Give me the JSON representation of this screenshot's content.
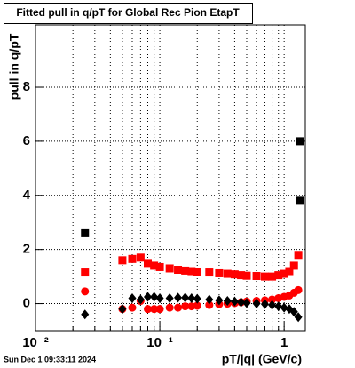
{
  "chart_data": {
    "type": "scatter",
    "title": "Fitted pull in q/pT for Global Rec Pion EtapT",
    "y_label": "pull in q/pT",
    "x_label": "pT/|q| (GeV/c)",
    "footer": "Sun Dec  1 09:33:11 2024",
    "xscale": "log",
    "grid": true,
    "xlim": [
      0.01,
      1.48
    ],
    "ylim": [
      -1,
      10.3
    ],
    "xticks": [
      {
        "value": 0.01,
        "label": "10⁻²"
      },
      {
        "value": 0.1,
        "label": "10⁻¹"
      },
      1
    ],
    "xminorticks": [
      0.02,
      0.03,
      0.04,
      0.05,
      0.06,
      0.07,
      0.08,
      0.09,
      0.2,
      0.3,
      0.4,
      0.5,
      0.6,
      0.7,
      0.8,
      0.9
    ],
    "yticks": [
      0,
      2,
      4,
      6,
      8
    ],
    "series": [
      {
        "color": "#ff0000",
        "marker": "square",
        "x": [
          0.025,
          0.05,
          0.06,
          0.07,
          0.08,
          0.09,
          0.1,
          0.12,
          0.14,
          0.16,
          0.18,
          0.2,
          0.25,
          0.3,
          0.35,
          0.4,
          0.45,
          0.5,
          0.6,
          0.7,
          0.8,
          0.9,
          1.0,
          1.1,
          1.2,
          1.3
        ],
        "values": [
          1.15,
          1.6,
          1.65,
          1.7,
          1.5,
          1.4,
          1.35,
          1.3,
          1.25,
          1.22,
          1.2,
          1.18,
          1.15,
          1.12,
          1.1,
          1.08,
          1.05,
          1.03,
          1.02,
          1.0,
          1.0,
          1.05,
          1.1,
          1.2,
          1.4,
          1.8
        ]
      },
      {
        "color": "#ff0000",
        "marker": "circle",
        "x": [
          0.025,
          0.05,
          0.06,
          0.07,
          0.08,
          0.09,
          0.1,
          0.12,
          0.14,
          0.16,
          0.18,
          0.2,
          0.25,
          0.3,
          0.35,
          0.4,
          0.45,
          0.5,
          0.6,
          0.7,
          0.8,
          0.9,
          1.0,
          1.1,
          1.2,
          1.3
        ],
        "values": [
          0.45,
          -0.2,
          -0.15,
          0.1,
          -0.2,
          -0.2,
          -0.2,
          -0.15,
          -0.15,
          -0.1,
          -0.1,
          -0.08,
          -0.05,
          -0.02,
          0,
          0.02,
          0.05,
          0.08,
          0.1,
          0.12,
          0.15,
          0.2,
          0.25,
          0.3,
          0.4,
          0.5
        ]
      },
      {
        "color": "#000000",
        "marker": "diamond",
        "x": [
          0.025,
          0.05,
          0.06,
          0.07,
          0.08,
          0.09,
          0.1,
          0.12,
          0.14,
          0.16,
          0.18,
          0.2,
          0.25,
          0.3,
          0.35,
          0.4,
          0.45,
          0.5,
          0.6,
          0.7,
          0.8,
          0.9,
          1.0,
          1.1,
          1.2,
          1.3
        ],
        "values": [
          -0.4,
          -0.2,
          0.2,
          0.15,
          0.25,
          0.25,
          0.2,
          0.2,
          0.22,
          0.22,
          0.2,
          0.18,
          0.15,
          0.12,
          0.1,
          0.08,
          0.05,
          0.02,
          0,
          -0.02,
          -0.05,
          -0.1,
          -0.15,
          -0.2,
          -0.3,
          -0.5
        ]
      },
      {
        "color": "#000000",
        "marker": "square",
        "x": [
          0.025,
          1.33,
          1.35
        ],
        "values": [
          2.6,
          6.0,
          3.8
        ]
      }
    ]
  }
}
